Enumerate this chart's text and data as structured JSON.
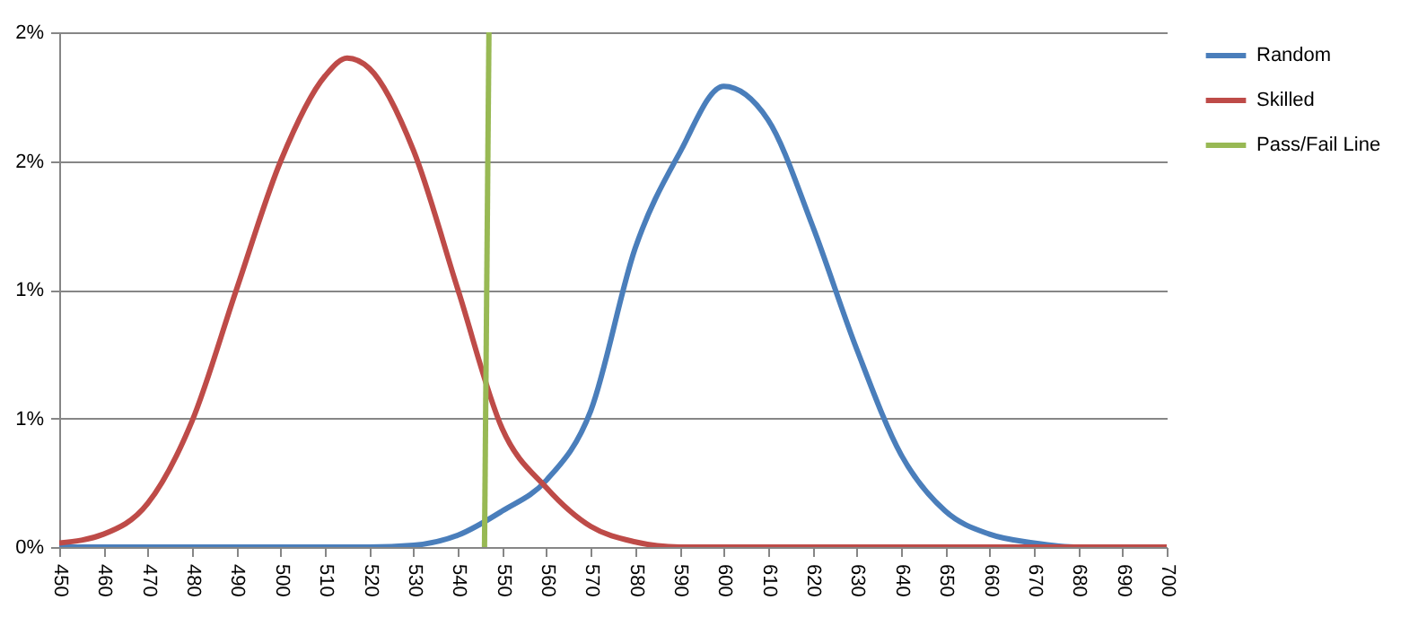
{
  "chart_data": {
    "type": "line",
    "x": [
      450,
      460,
      470,
      480,
      490,
      500,
      510,
      515,
      520,
      530,
      540,
      550,
      560,
      570,
      580,
      590,
      600,
      610,
      620,
      630,
      640,
      650,
      660,
      670,
      680,
      690,
      700
    ],
    "xlim": [
      450,
      700
    ],
    "xticks": [
      450,
      460,
      470,
      480,
      490,
      500,
      510,
      520,
      530,
      540,
      550,
      560,
      570,
      580,
      590,
      600,
      610,
      620,
      630,
      640,
      650,
      660,
      670,
      680,
      690,
      700
    ],
    "ylim": [
      0,
      2
    ],
    "yticks": [
      {
        "value": 0,
        "label": "0%"
      },
      {
        "value": 0.5,
        "label": "1%"
      },
      {
        "value": 1,
        "label": "1%"
      },
      {
        "value": 1.5,
        "label": "2%"
      },
      {
        "value": 2,
        "label": "2%"
      }
    ],
    "grid": "y",
    "legend": "right",
    "series": [
      {
        "name": "Random",
        "color": "#4a7ebb",
        "values": [
          0,
          0,
          0,
          0,
          0,
          0,
          0,
          0,
          0,
          0.007,
          0.046,
          0.14,
          0.26,
          0.53,
          1.16,
          1.53,
          1.79,
          1.66,
          1.25,
          0.77,
          0.36,
          0.14,
          0.05,
          0.016,
          0,
          0,
          0
        ]
      },
      {
        "name": "Skilled",
        "color": "#be4b48",
        "values": [
          0.016,
          0.05,
          0.17,
          0.49,
          1.0,
          1.5,
          1.83,
          1.9,
          1.86,
          1.54,
          1.0,
          0.46,
          0.23,
          0.08,
          0.02,
          0,
          0,
          0,
          0,
          0,
          0,
          0,
          0,
          0,
          0,
          0,
          0
        ]
      },
      {
        "name": "Pass/Fail Line",
        "color": "#98b954",
        "x": [
          546,
          547
        ],
        "values": [
          0,
          2
        ]
      }
    ]
  }
}
